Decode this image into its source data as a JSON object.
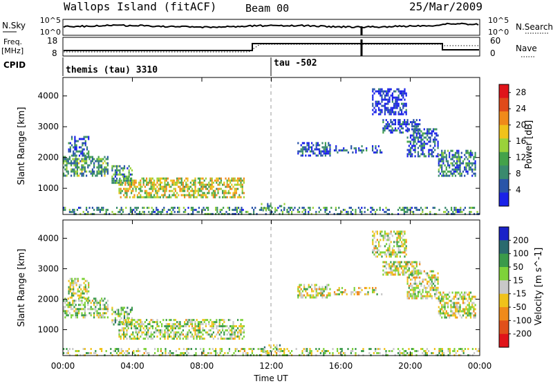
{
  "header": {
    "site": "Wallops Island (fitACF)",
    "beam": "Beam 00",
    "date": "25/Mar/2009"
  },
  "strips": {
    "nsky_label": "N.Sky",
    "nsky_ticks": [
      "10^5",
      "10^0"
    ],
    "nsearch_label": "N.Search",
    "nsearch_ticks": [
      "10^5",
      "10^0"
    ],
    "freq_label": "Freq.",
    "freq_unit": "[MHz]",
    "freq_ticks": [
      "18",
      "8"
    ],
    "nave_label": "Nave",
    "nave_ticks": [
      "60",
      "0"
    ],
    "cpid_label": "CPID",
    "cpid_segments": [
      {
        "label": "themis (tau) 3310",
        "start_hour": 0,
        "end_hour": 12
      },
      {
        "label": "tau -502",
        "start_hour": 12,
        "end_hour": 24
      }
    ]
  },
  "xaxis": {
    "title": "Time UT",
    "ticks": [
      "00:00",
      "04:00",
      "08:00",
      "12:00",
      "16:00",
      "20:00",
      "00:00"
    ],
    "range_hours": [
      0,
      24
    ]
  },
  "colors": {
    "power": [
      "#1a22e8",
      "#2a55a8",
      "#3a8a6e",
      "#44a24a",
      "#9ad23a",
      "#f0c21a",
      "#f08a1a",
      "#e04a1a",
      "#e0141a"
    ],
    "velocity": [
      "#1a22c8",
      "#2a6a6e",
      "#3a9a4a",
      "#7ed23a",
      "#c8c8c8",
      "#f0c21a",
      "#f08a1a",
      "#e0501a",
      "#e0141a"
    ]
  },
  "chart_data": [
    {
      "type": "heatmap",
      "name": "power",
      "ylabel": "Slant Range [km]",
      "yticks": [
        "1000",
        "2000",
        "3000",
        "4000"
      ],
      "ylim": [
        150,
        4600
      ],
      "xlim": [
        0,
        24
      ],
      "colorbar_label": "Power [dB]",
      "colorbar_ticks": [
        "4",
        "8",
        "12",
        "16",
        "20",
        "24",
        "28"
      ],
      "colorbar_range": [
        0,
        30
      ],
      "regions": [
        {
          "x": [
            0.0,
            2.6
          ],
          "y": [
            1350,
            2050
          ],
          "level": 0.35
        },
        {
          "x": [
            0.3,
            1.5
          ],
          "y": [
            2050,
            2700
          ],
          "level": 0.2
        },
        {
          "x": [
            2.8,
            4.0
          ],
          "y": [
            1150,
            1750
          ],
          "level": 0.3
        },
        {
          "x": [
            3.2,
            10.5
          ],
          "y": [
            700,
            1350
          ],
          "level": 0.55
        },
        {
          "x": [
            11.4,
            12.8
          ],
          "y": [
            250,
            520
          ],
          "level": 0.35
        },
        {
          "x": [
            13.5,
            15.4
          ],
          "y": [
            2000,
            2500
          ],
          "level": 0.15
        },
        {
          "x": [
            15.6,
            18.4
          ],
          "y": [
            2150,
            2400
          ],
          "level": 0.12
        },
        {
          "x": [
            18.4,
            20.6
          ],
          "y": [
            2800,
            3250
          ],
          "level": 0.15
        },
        {
          "x": [
            19.8,
            21.6
          ],
          "y": [
            2000,
            2950
          ],
          "level": 0.15
        },
        {
          "x": [
            21.6,
            23.8
          ],
          "y": [
            1350,
            2250
          ],
          "level": 0.25
        },
        {
          "x": [
            17.8,
            19.8
          ],
          "y": [
            3350,
            4250
          ],
          "level": 0.05
        },
        {
          "x": [
            0.0,
            24.0
          ],
          "y": [
            160,
            400
          ],
          "level": 0.3
        }
      ]
    },
    {
      "type": "heatmap",
      "name": "velocity",
      "ylabel": "Slant Range [km]",
      "yticks": [
        "1000",
        "2000",
        "3000",
        "4000"
      ],
      "ylim": [
        150,
        4600
      ],
      "xlim": [
        0,
        24
      ],
      "colorbar_label": "Velocity [m s^-1]",
      "colorbar_ticks": [
        "200",
        "100",
        "50",
        "15",
        "-15",
        "-50",
        "-100",
        "-200"
      ],
      "colorbar_range": [
        250,
        -250
      ],
      "regions": [
        {
          "x": [
            0.0,
            2.6
          ],
          "y": [
            1350,
            2050
          ],
          "level": 0.45
        },
        {
          "x": [
            0.3,
            1.5
          ],
          "y": [
            2050,
            2700
          ],
          "level": 0.45
        },
        {
          "x": [
            2.8,
            4.0
          ],
          "y": [
            1150,
            1750
          ],
          "level": 0.4
        },
        {
          "x": [
            3.2,
            10.5
          ],
          "y": [
            700,
            1350
          ],
          "level": 0.45
        },
        {
          "x": [
            11.4,
            12.8
          ],
          "y": [
            250,
            520
          ],
          "level": 0.42
        },
        {
          "x": [
            13.5,
            15.4
          ],
          "y": [
            2000,
            2500
          ],
          "level": 0.5
        },
        {
          "x": [
            15.6,
            18.4
          ],
          "y": [
            2150,
            2400
          ],
          "level": 0.5
        },
        {
          "x": [
            18.4,
            20.6
          ],
          "y": [
            2800,
            3250
          ],
          "level": 0.5
        },
        {
          "x": [
            19.8,
            21.6
          ],
          "y": [
            2000,
            2950
          ],
          "level": 0.5
        },
        {
          "x": [
            21.6,
            23.8
          ],
          "y": [
            1350,
            2250
          ],
          "level": 0.5
        },
        {
          "x": [
            17.8,
            19.8
          ],
          "y": [
            3350,
            4250
          ],
          "level": 0.5
        },
        {
          "x": [
            0.0,
            24.0
          ],
          "y": [
            160,
            400
          ],
          "level": 0.45
        }
      ]
    }
  ]
}
